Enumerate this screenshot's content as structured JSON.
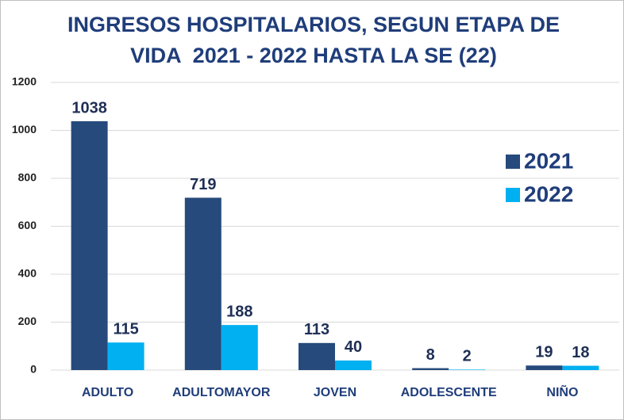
{
  "chart_data": {
    "type": "bar",
    "title": [
      "INGRESOS HOSPITALARIOS, SEGUN ETAPA DE",
      "VIDA  2021 - 2022 HASTA LA SE (22)"
    ],
    "categories": [
      "ADULTO",
      "ADULTOMAYOR",
      "JOVEN",
      "ADOLESCENTE",
      "NIÑO"
    ],
    "series": [
      {
        "name": "2021",
        "color": "#264a7c",
        "values": [
          1038,
          719,
          113,
          8,
          19
        ]
      },
      {
        "name": "2022",
        "color": "#00b0f0",
        "values": [
          115,
          188,
          40,
          2,
          18
        ]
      }
    ],
    "ylim": [
      0,
      1200
    ],
    "yticks": [
      0,
      200,
      400,
      600,
      800,
      1000,
      1200
    ],
    "grid": true,
    "legend": "right"
  }
}
